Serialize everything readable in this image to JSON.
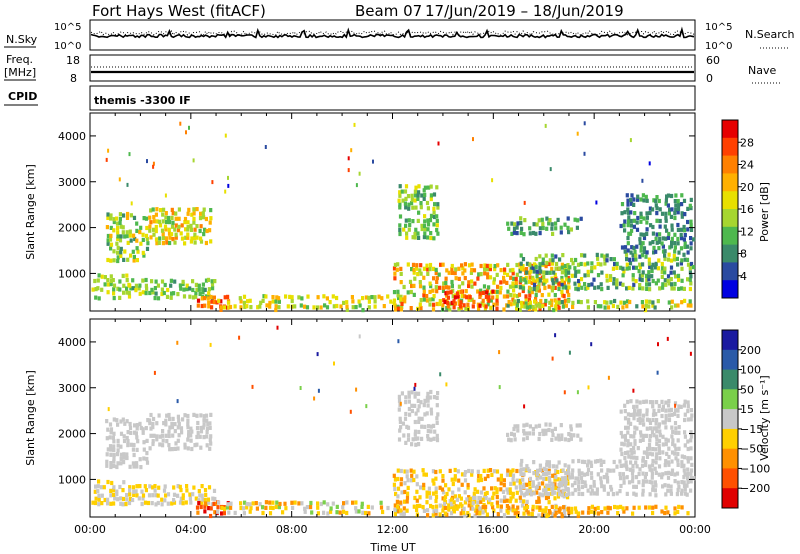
{
  "header": {
    "station": "Fort Hays West (fitACF)",
    "beam": "Beam 07",
    "dates": "17/Jun/2019 – 18/Jun/2019"
  },
  "strips": {
    "nsky_label": "N.Sky",
    "nsky_ticks": [
      "10^5",
      "10^0"
    ],
    "nsearch_label": "N.Search",
    "freq_label": "Freq.",
    "freq_unit": "[MHz]",
    "freq_ticks": [
      "18",
      "8"
    ],
    "nave_ticks": [
      "60",
      "0"
    ],
    "nave_label": "Nave",
    "cpid_label": "CPID",
    "cpid_text": "themis -3300 IF"
  },
  "chart_data": [
    {
      "type": "heatmap",
      "title": "",
      "xlabel": "",
      "ylabel": "Slant Range [km]",
      "xlim": [
        0,
        24
      ],
      "ylim": [
        180,
        4500
      ],
      "yticks": [
        1000,
        2000,
        3000,
        4000
      ],
      "quantity": "Power",
      "colorbar": {
        "label": "Power [dB]",
        "ticks": [
          "28",
          "24",
          "20",
          "16",
          "12",
          "8",
          "4"
        ],
        "colors": [
          "#e60000",
          "#ff4000",
          "#ff8000",
          "#ffb000",
          "#e8e000",
          "#a6d630",
          "#4eb84e",
          "#3a8a6a",
          "#2a4aa0",
          "#0000e0"
        ]
      }
    },
    {
      "type": "heatmap",
      "title": "",
      "xlabel": "Time UT",
      "ylabel": "Slant Range [km]",
      "xlim": [
        0,
        24
      ],
      "ylim": [
        180,
        4500
      ],
      "yticks": [
        1000,
        2000,
        3000,
        4000
      ],
      "xticks": [
        "00:00",
        "04:00",
        "08:00",
        "12:00",
        "16:00",
        "20:00",
        "00:00"
      ],
      "quantity": "Velocity",
      "colorbar": {
        "label": "Velocity [m s⁻¹]",
        "ticks": [
          "200",
          "100",
          "50",
          "15",
          "−15",
          "−50",
          "−100",
          "−200"
        ],
        "colors": [
          "#1a1aa0",
          "#2a5aa8",
          "#3a8a6a",
          "#7ad04a",
          "#c8c8c8",
          "#ffd000",
          "#ff9000",
          "#ff5000",
          "#e00000"
        ]
      }
    }
  ]
}
